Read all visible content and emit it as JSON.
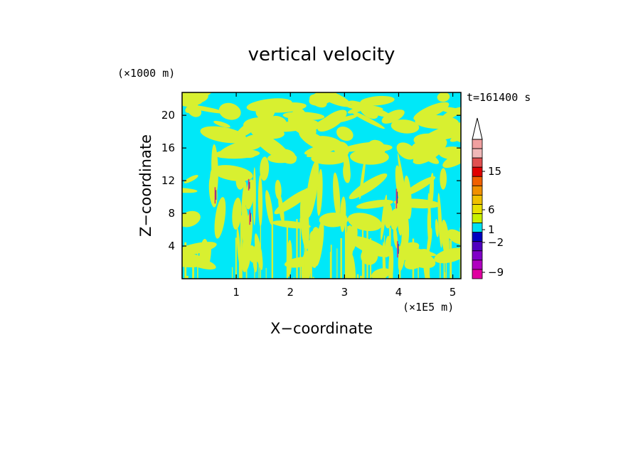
{
  "chart_data": {
    "type": "heatmap",
    "title": "vertical velocity",
    "xlabel": "X−coordinate",
    "ylabel": "Z−coordinate",
    "x_unit": "(×1E5 m)",
    "y_unit": "(×1000 m)",
    "time_label": "t=161400 s",
    "xlim": [
      0,
      5.15
    ],
    "ylim": [
      0,
      22.8
    ],
    "x_ticks": [
      1,
      2,
      3,
      4,
      5
    ],
    "y_ticks": [
      4,
      8,
      12,
      16,
      20
    ],
    "grid": false,
    "legend_position": "right",
    "colorbar": {
      "labels": [
        "15",
        "6",
        "1",
        "−2",
        "−9"
      ],
      "colors": [
        "#f0a0a0",
        "#f0b8b8",
        "#e05050",
        "#e00000",
        "#f06000",
        "#f09000",
        "#f0c000",
        "#e8e000",
        "#c8f000",
        "#00e0f0",
        "#0000c0",
        "#5000c0",
        "#8000c8",
        "#b000c0",
        "#e000a0"
      ],
      "extend": "max"
    },
    "field": {
      "background_color": "#00e8f8",
      "positive_color": "#d8f030",
      "updraft_color": "#e03070",
      "downdraft_color": "#4020a0"
    }
  }
}
